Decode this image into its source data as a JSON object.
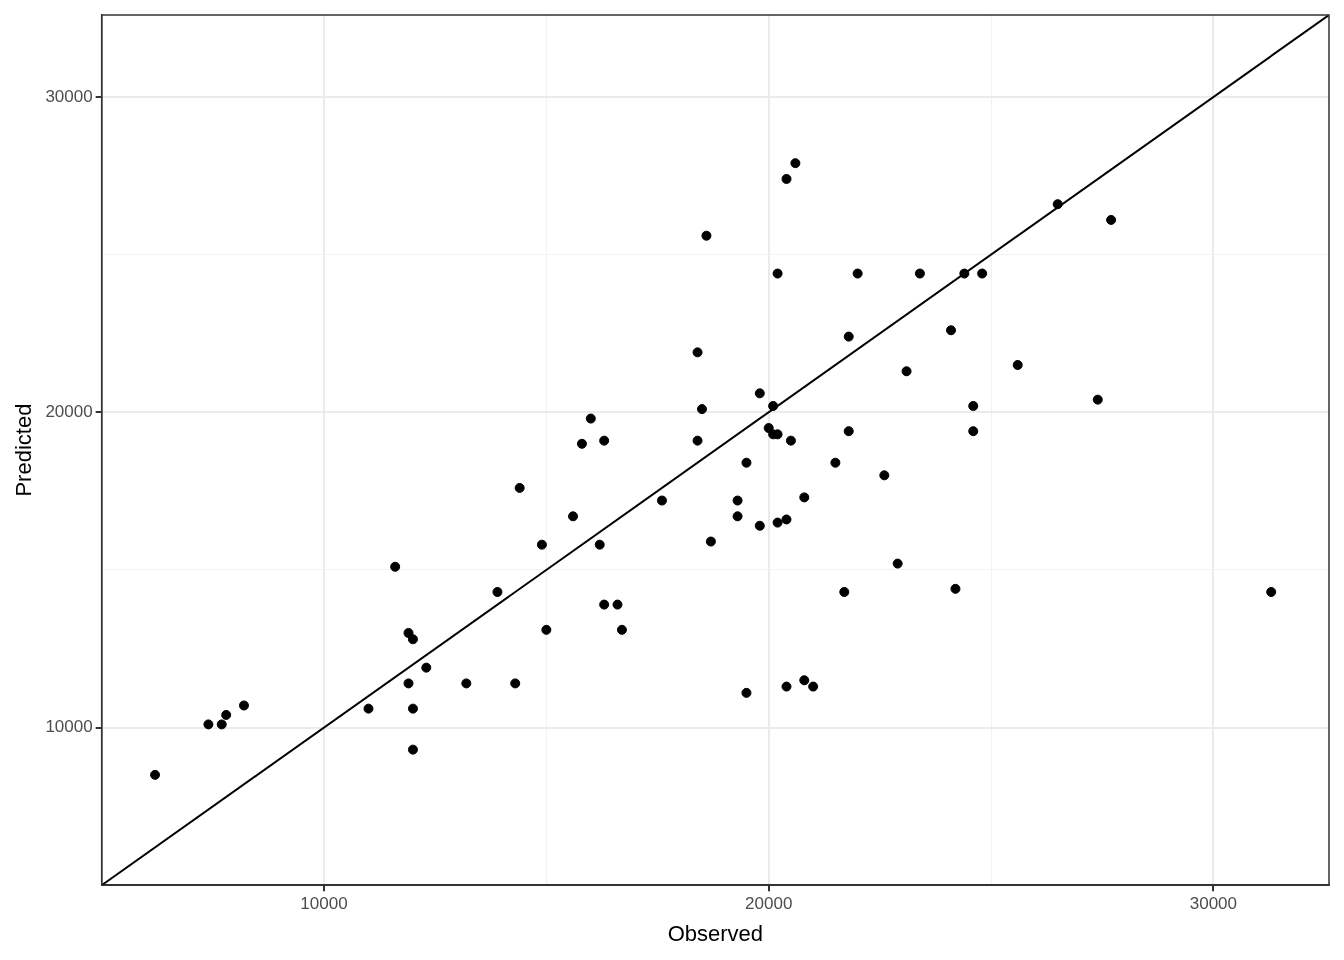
{
  "chart_data": {
    "type": "scatter",
    "xlabel": "Observed",
    "ylabel": "Predicted",
    "xlim": [
      5000,
      32600
    ],
    "ylim": [
      5000,
      32600
    ],
    "xticks": [
      10000,
      {
        "value": 15000,
        "label": null
      },
      20000,
      {
        "value": 25000,
        "label": null
      },
      30000
    ],
    "yticks": [
      10000,
      {
        "value": 15000,
        "label": null
      },
      20000,
      {
        "value": 25000,
        "label": null
      },
      30000
    ],
    "grid": true,
    "legend": false,
    "marker": "circle",
    "series": [
      {
        "color": "#000000",
        "x": [
          6200,
          7400,
          7700,
          7800,
          8200,
          11000,
          11600,
          11900,
          12000,
          11900,
          12000,
          12000,
          12300,
          13200,
          13900,
          14300,
          14400,
          14900,
          15000,
          15600,
          15800,
          16000,
          16200,
          16300,
          16300,
          16600,
          16700,
          17600,
          18400,
          18400,
          18500,
          18600,
          18700,
          19300,
          19300,
          19500,
          19500,
          19800,
          19800,
          20000,
          20100,
          20100,
          20200,
          20200,
          20200,
          20400,
          20400,
          20400,
          20500,
          20600,
          20800,
          20800,
          21000,
          21500,
          21700,
          21800,
          21800,
          22000,
          22600,
          22900,
          23100,
          23400,
          24100,
          24200,
          24400,
          24600,
          24600,
          24800,
          25600,
          26500,
          27400,
          27700,
          31300
        ],
        "values": [
          8500,
          10100,
          10100,
          10400,
          10700,
          10600,
          15100,
          13000,
          12800,
          11400,
          10600,
          9300,
          11900,
          11400,
          14300,
          11400,
          17600,
          15800,
          13100,
          16700,
          19000,
          19800,
          15800,
          13900,
          19100,
          13900,
          13100,
          17200,
          21900,
          19100,
          20100,
          25600,
          15900,
          17200,
          16700,
          18400,
          11100,
          20600,
          16400,
          19500,
          20200,
          19300,
          19300,
          24400,
          16500,
          27400,
          16600,
          11300,
          19100,
          27900,
          17300,
          11500,
          11300,
          18400,
          14300,
          22400,
          19400,
          24400,
          18000,
          15200,
          21300,
          24400,
          22600,
          14400,
          24400,
          19400,
          20200,
          24400,
          21500,
          26600,
          20400,
          26100,
          14300
        ]
      },
      {
        "type": "line",
        "color": "#000000",
        "marker": "none",
        "x": [
          5000,
          32600
        ],
        "values": [
          5000,
          32600
        ]
      }
    ]
  }
}
